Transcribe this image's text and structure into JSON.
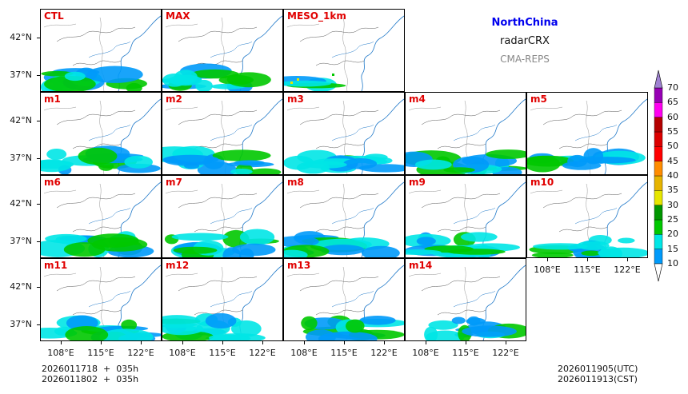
{
  "title": "NorthChina",
  "product": "radarCRX",
  "model": "CMA-REPS",
  "init_time": "2026011718  +  035h",
  "init_time_cst": "2026011802  +  035h",
  "valid_time_utc": "2026011905(UTC)",
  "valid_time_cst": "2026011913(CST)",
  "chart_data": {
    "type": "heatmap",
    "title": "NorthChina radarCRX",
    "panels": [
      {
        "label": "CTL",
        "row": 0,
        "col": 0
      },
      {
        "label": "MAX",
        "row": 0,
        "col": 1
      },
      {
        "label": "MESO_1km",
        "row": 0,
        "col": 2
      },
      {
        "label": "m1",
        "row": 1,
        "col": 0
      },
      {
        "label": "m2",
        "row": 1,
        "col": 1
      },
      {
        "label": "m3",
        "row": 1,
        "col": 2
      },
      {
        "label": "m4",
        "row": 1,
        "col": 3
      },
      {
        "label": "m5",
        "row": 1,
        "col": 4
      },
      {
        "label": "m6",
        "row": 2,
        "col": 0
      },
      {
        "label": "m7",
        "row": 2,
        "col": 1
      },
      {
        "label": "m8",
        "row": 2,
        "col": 2
      },
      {
        "label": "m9",
        "row": 2,
        "col": 3
      },
      {
        "label": "m10",
        "row": 2,
        "col": 4
      },
      {
        "label": "m11",
        "row": 3,
        "col": 0
      },
      {
        "label": "m12",
        "row": 3,
        "col": 1
      },
      {
        "label": "m13",
        "row": 3,
        "col": 2
      },
      {
        "label": "m14",
        "row": 3,
        "col": 3
      }
    ],
    "lat_ticks": [
      "42°N",
      "37°N"
    ],
    "lon_ticks": [
      "108°E",
      "115°E",
      "122°E"
    ],
    "colorbar": {
      "levels": [
        "10",
        "15",
        "20",
        "25",
        "30",
        "35",
        "40",
        "45",
        "50",
        "55",
        "60",
        "65",
        "70"
      ],
      "colors": [
        "#009afa",
        "#00e6e6",
        "#00c800",
        "#009600",
        "#e6e600",
        "#e6b400",
        "#ff8c00",
        "#ff0000",
        "#dc0000",
        "#b40000",
        "#ff00f0",
        "#9600b4",
        "#9f82d2"
      ],
      "extend": "both"
    }
  }
}
